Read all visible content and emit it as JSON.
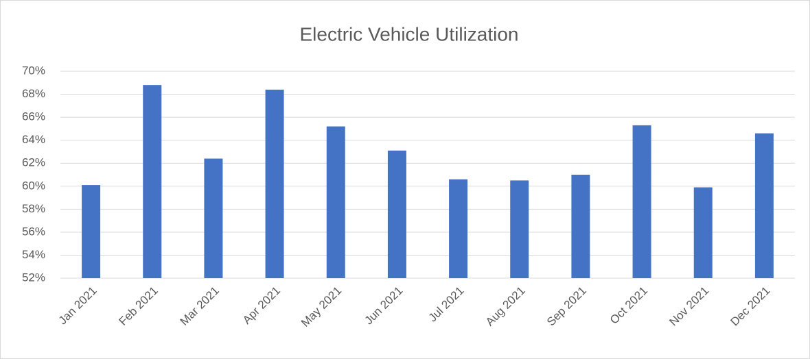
{
  "chart_data": {
    "type": "bar",
    "title": "Electric Vehicle Utilization",
    "categories": [
      "Jan 2021",
      "Feb 2021",
      "Mar 2021",
      "Apr 2021",
      "May 2021",
      "Jun 2021",
      "Jul 2021",
      "Aug 2021",
      "Sep 2021",
      "Oct 2021",
      "Nov 2021",
      "Dec 2021"
    ],
    "values": [
      60.1,
      68.8,
      62.4,
      68.4,
      65.2,
      63.1,
      60.6,
      60.5,
      61.0,
      65.3,
      59.9,
      64.6
    ],
    "color": "#4472c4",
    "ylim": [
      52,
      70
    ],
    "yticks": [
      {
        "value": 52,
        "label": "52%"
      },
      {
        "value": 54,
        "label": "54%"
      },
      {
        "value": 56,
        "label": "56%"
      },
      {
        "value": 58,
        "label": "58%"
      },
      {
        "value": 60,
        "label": "60%"
      },
      {
        "value": 62,
        "label": "62%"
      },
      {
        "value": 64,
        "label": "64%"
      },
      {
        "value": 66,
        "label": "66%"
      },
      {
        "value": 68,
        "label": "68%"
      },
      {
        "value": 70,
        "label": "70%"
      }
    ],
    "grid": true
  }
}
